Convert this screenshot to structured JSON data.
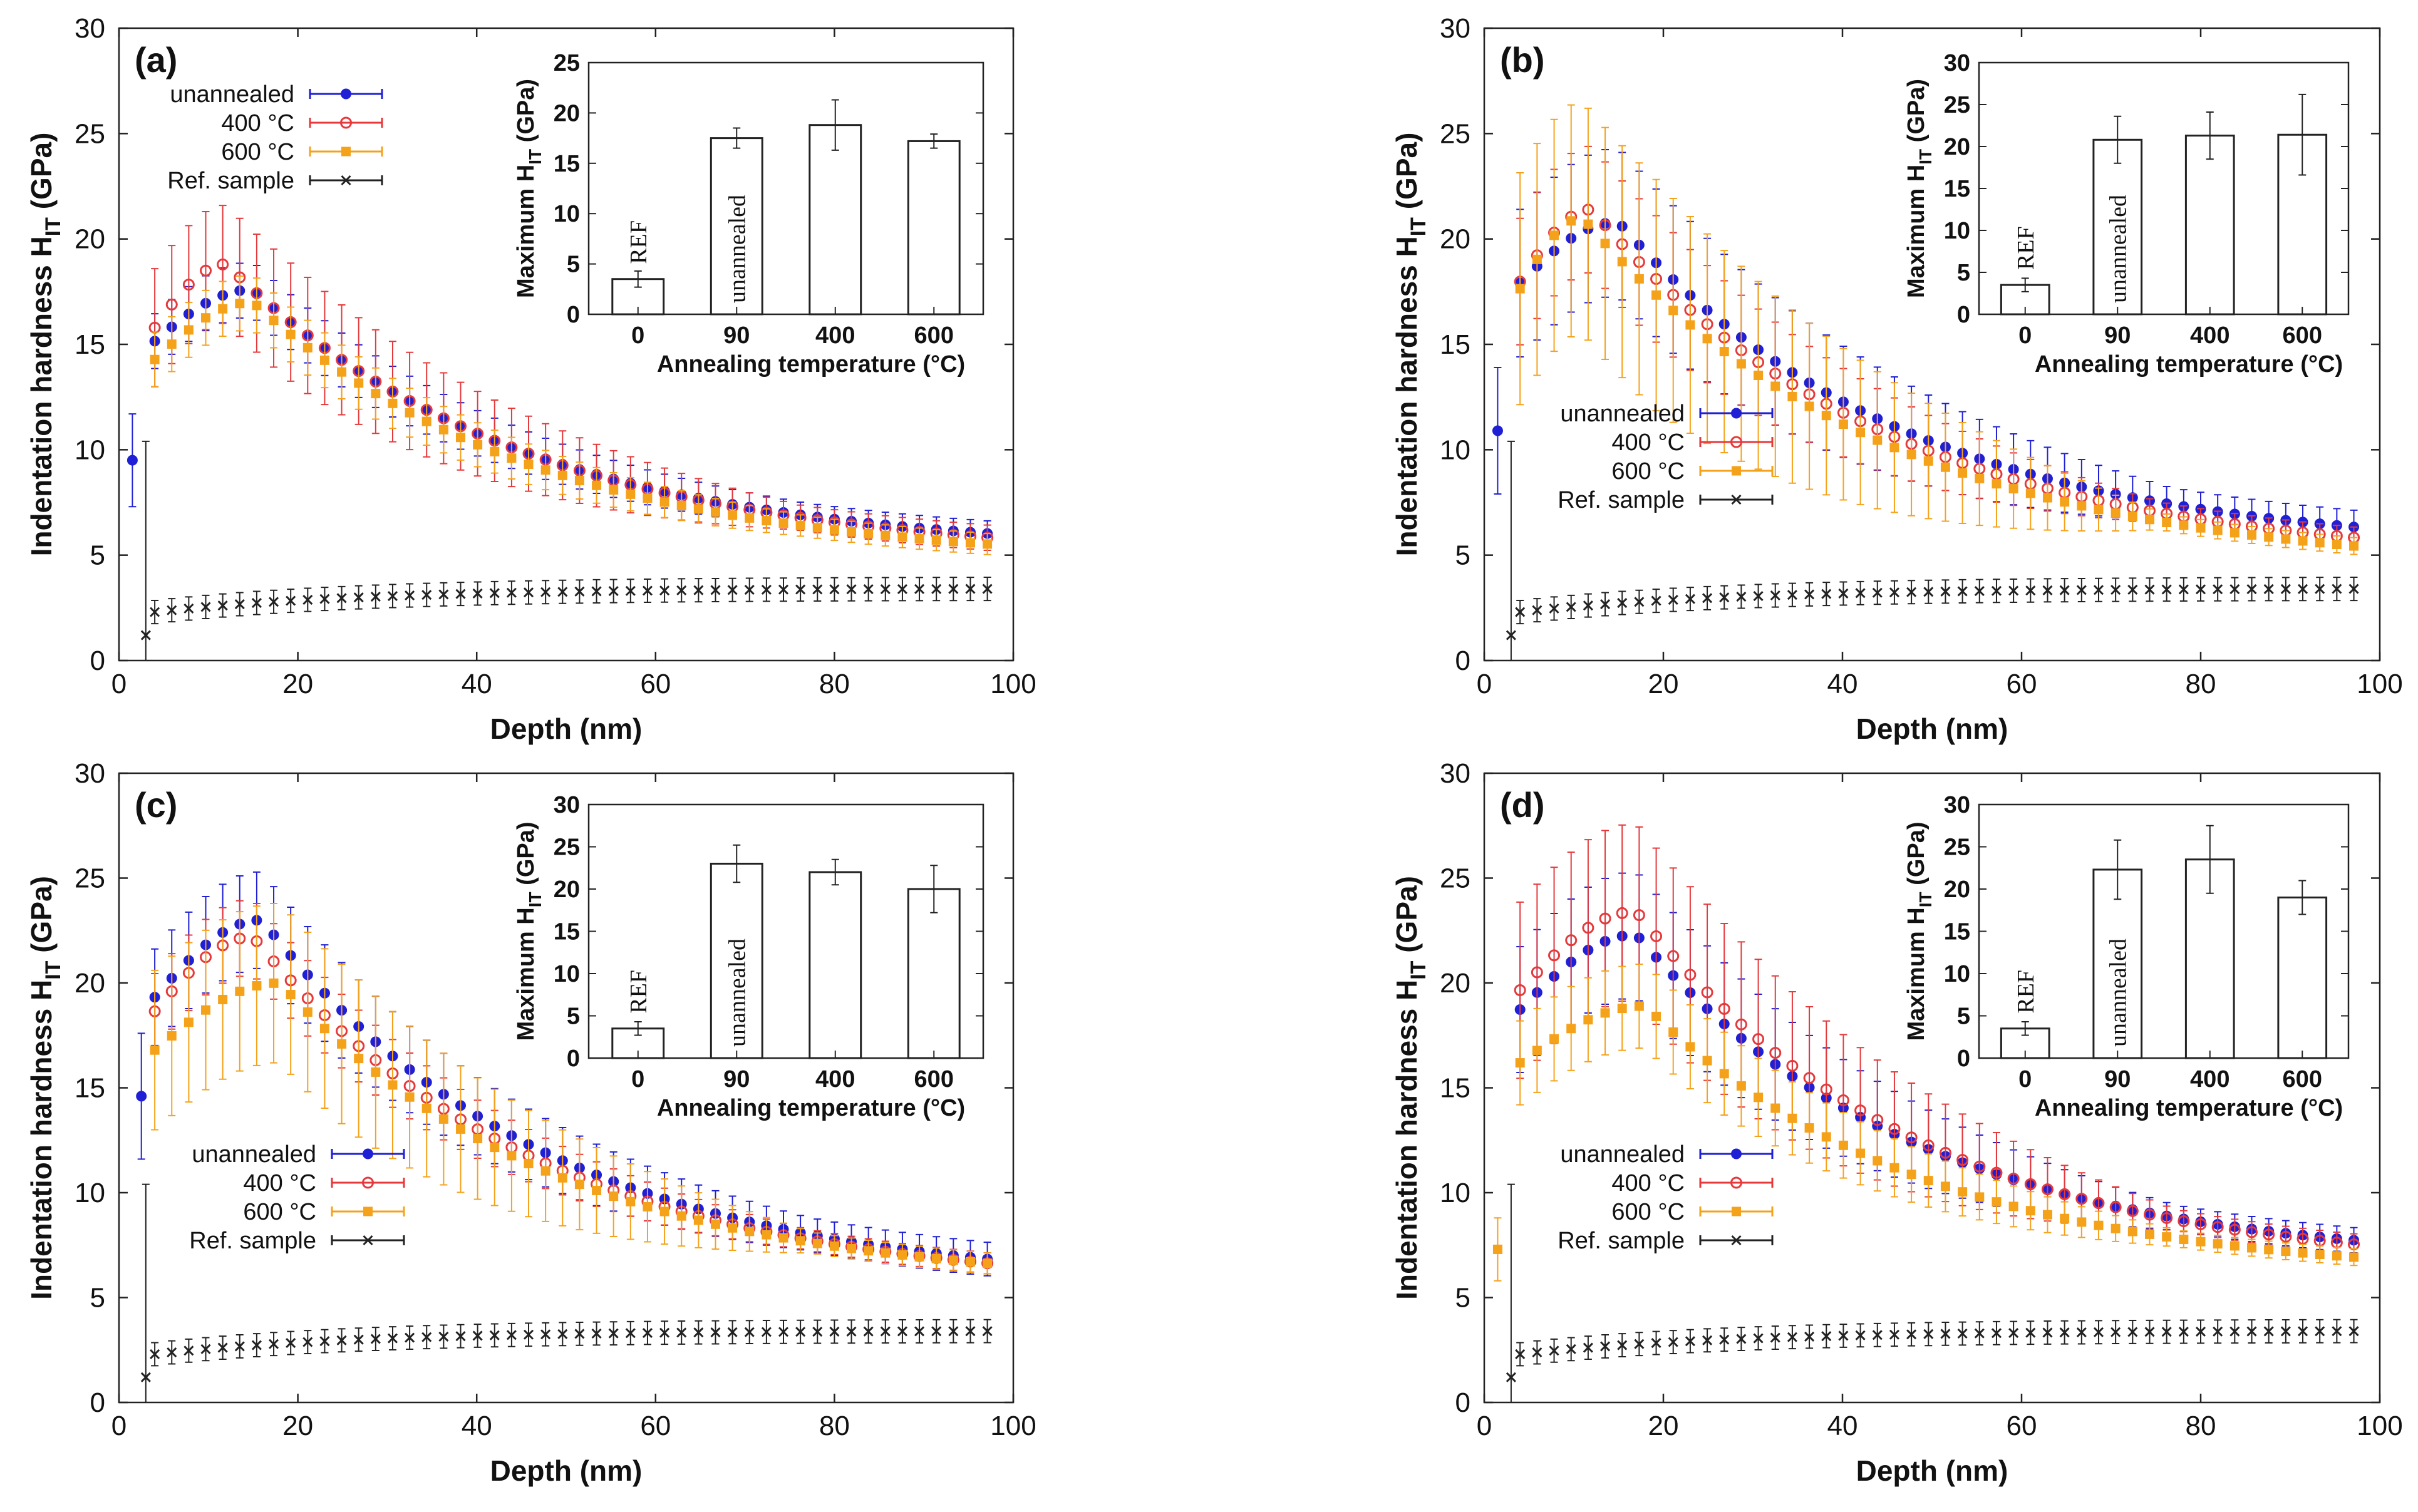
{
  "chart_data": [
    {
      "panel": "(a)",
      "type": "scatter",
      "xlabel": "Depth (nm)",
      "ylabel": "Indentation hardness H",
      "ylabel_sub": "IT",
      "ylabel_unit": "(GPa)",
      "xlim": [
        0,
        100
      ],
      "ylim": [
        0,
        30
      ],
      "xticks": [
        0,
        20,
        40,
        60,
        80,
        100
      ],
      "yticks": [
        0,
        5,
        10,
        15,
        20,
        25,
        30
      ],
      "legend_position": "top-left",
      "series": [
        {
          "name": "unannealed",
          "color": "#1f1fd6",
          "marker": "filled-circle",
          "x0": 1.5,
          "y0": 9.5,
          "e0": 2.2,
          "peak_x": 15,
          "peak_y": 17.6,
          "end_y": 6.0,
          "err_peak": 1.3,
          "err_end": 0.6,
          "x_start": 3
        },
        {
          "name": "400 °C",
          "color": "#e5393b",
          "marker": "open-circle",
          "peak_x": 12,
          "peak_y": 18.8,
          "end_y": 5.8,
          "err_peak": 2.8,
          "err_end": 0.6,
          "x_start": 4
        },
        {
          "name": "600 °C",
          "color": "#f5a21b",
          "marker": "filled-square",
          "peak_x": 15,
          "peak_y": 17.0,
          "end_y": 5.5,
          "err_peak": 1.3,
          "err_end": 0.5,
          "x_start": 4
        },
        {
          "name": "Ref. sample",
          "color": "#222222",
          "marker": "cross",
          "x0": 3,
          "y0": 1.2,
          "e0": 9.2,
          "start_y": 2.3,
          "end_y": 3.4,
          "err": 0.55
        }
      ],
      "inset": {
        "type": "bar",
        "xlabel": "Annealing temperature (°C)",
        "ylabel": "Maximum H",
        "ylabel_sub": "IT",
        "ylabel_unit": "(GPa)",
        "categories": [
          "0",
          "90",
          "400",
          "600"
        ],
        "values": [
          3.5,
          17.5,
          18.8,
          17.2
        ],
        "errors": [
          0.8,
          1.0,
          2.5,
          0.7
        ],
        "bar_labels": [
          "REF",
          "unannealed",
          "",
          ""
        ],
        "ylim": [
          0,
          25
        ],
        "yticks": [
          0,
          5,
          10,
          15,
          20,
          25
        ]
      }
    },
    {
      "panel": "(b)",
      "type": "scatter",
      "xlabel": "Depth (nm)",
      "ylabel": "Indentation hardness H",
      "ylabel_sub": "IT",
      "ylabel_unit": "(GPa)",
      "xlim": [
        0,
        100
      ],
      "ylim": [
        0,
        30
      ],
      "xticks": [
        0,
        20,
        40,
        60,
        80,
        100
      ],
      "yticks": [
        0,
        5,
        10,
        15,
        20,
        25,
        30
      ],
      "legend_position": "middle-left",
      "series": [
        {
          "name": "unannealed",
          "color": "#1f1fd6",
          "marker": "filled-circle",
          "x0": 1.5,
          "y0": 10.9,
          "e0": 3.0,
          "peak_x": 15,
          "peak_y": 20.8,
          "end_y": 6.3,
          "err_peak": 3.5,
          "err_end": 0.8,
          "x_start": 3
        },
        {
          "name": "400 °C",
          "color": "#e5393b",
          "marker": "open-circle",
          "peak_x": 12,
          "peak_y": 21.4,
          "end_y": 5.8,
          "err_peak": 3.0,
          "err_end": 0.5,
          "x_start": 4
        },
        {
          "name": "600 °C",
          "color": "#f5a21b",
          "marker": "filled-square",
          "peak_x": 11,
          "peak_y": 21.0,
          "end_y": 5.4,
          "err_peak": 5.5,
          "err_end": 0.4,
          "x_start": 4
        },
        {
          "name": "Ref. sample",
          "color": "#222222",
          "marker": "cross",
          "x0": 3,
          "y0": 1.2,
          "e0": 9.2,
          "start_y": 2.3,
          "end_y": 3.4,
          "err": 0.55
        }
      ],
      "inset": {
        "type": "bar",
        "xlabel": "Annealing temperature (°C)",
        "ylabel": "Maximum H",
        "ylabel_sub": "IT",
        "ylabel_unit": "(GPa)",
        "categories": [
          "0",
          "90",
          "400",
          "600"
        ],
        "values": [
          3.5,
          20.8,
          21.3,
          21.4
        ],
        "errors": [
          0.8,
          2.8,
          2.8,
          4.8
        ],
        "bar_labels": [
          "REF",
          "unannealed",
          "",
          ""
        ],
        "ylim": [
          0,
          30
        ],
        "yticks": [
          0,
          5,
          10,
          15,
          20,
          25,
          30
        ]
      }
    },
    {
      "panel": "(c)",
      "type": "scatter",
      "xlabel": "Depth (nm)",
      "ylabel": "Indentation hardness H",
      "ylabel_sub": "IT",
      "ylabel_unit": "(GPa)",
      "xlim": [
        0,
        100
      ],
      "ylim": [
        0,
        30
      ],
      "xticks": [
        0,
        20,
        40,
        60,
        80,
        100
      ],
      "yticks": [
        0,
        5,
        10,
        15,
        20,
        25,
        30
      ],
      "legend_position": "middle-left",
      "series": [
        {
          "name": "unannealed",
          "color": "#1f1fd6",
          "marker": "filled-circle",
          "x0": 2.5,
          "y0": 14.6,
          "e0": 3.0,
          "peak_x": 16,
          "peak_y": 23.0,
          "end_y": 6.8,
          "err_peak": 2.3,
          "err_end": 0.8,
          "x_start": 4
        },
        {
          "name": "400 °C",
          "color": "#e5393b",
          "marker": "open-circle",
          "peak_x": 15,
          "peak_y": 22.2,
          "end_y": 6.6,
          "err_peak": 1.8,
          "err_end": 0.5,
          "x_start": 4
        },
        {
          "name": "600 °C",
          "color": "#f5a21b",
          "marker": "filled-square",
          "peak_x": 18,
          "peak_y": 20.0,
          "end_y": 6.6,
          "err_peak": 3.8,
          "err_end": 0.5,
          "x_start": 4
        },
        {
          "name": "Ref. sample",
          "color": "#222222",
          "marker": "cross",
          "x0": 3,
          "y0": 1.2,
          "e0": 9.2,
          "start_y": 2.3,
          "end_y": 3.4,
          "err": 0.55
        }
      ],
      "inset": {
        "type": "bar",
        "xlabel": "Annealing temperature (°C)",
        "ylabel": "Maximum H",
        "ylabel_sub": "IT",
        "ylabel_unit": "(GPa)",
        "categories": [
          "0",
          "90",
          "400",
          "600"
        ],
        "values": [
          3.5,
          23.0,
          22.0,
          20.0
        ],
        "errors": [
          0.8,
          2.2,
          1.5,
          2.8
        ],
        "bar_labels": [
          "REF",
          "unannealed",
          "",
          ""
        ],
        "ylim": [
          0,
          30
        ],
        "yticks": [
          0,
          5,
          10,
          15,
          20,
          25,
          30
        ]
      }
    },
    {
      "panel": "(d)",
      "type": "scatter",
      "xlabel": "Depth (nm)",
      "ylabel": "Indentation hardness H",
      "ylabel_sub": "IT",
      "ylabel_unit": "(GPa)",
      "xlim": [
        0,
        100
      ],
      "ylim": [
        0,
        30
      ],
      "xticks": [
        0,
        20,
        40,
        60,
        80,
        100
      ],
      "yticks": [
        0,
        5,
        10,
        15,
        20,
        25,
        30
      ],
      "legend_position": "middle-left",
      "series": [
        {
          "name": "unannealed",
          "color": "#1f1fd6",
          "marker": "filled-circle",
          "peak_x": 17,
          "peak_y": 22.3,
          "end_y": 7.7,
          "err_peak": 3.0,
          "err_end": 0.6,
          "x_start": 4
        },
        {
          "name": "400 °C",
          "color": "#e5393b",
          "marker": "open-circle",
          "peak_x": 17,
          "peak_y": 23.4,
          "end_y": 7.5,
          "err_peak": 4.2,
          "err_end": 0.5,
          "x_start": 4
        },
        {
          "name": "600 °C",
          "color": "#f5a21b",
          "marker": "filled-square",
          "x0": 1.5,
          "y0": 7.3,
          "e0": 1.5,
          "peak_x": 18,
          "peak_y": 18.9,
          "end_y": 6.9,
          "err_peak": 2.0,
          "err_end": 0.4,
          "x_start": 3
        },
        {
          "name": "Ref. sample",
          "color": "#222222",
          "marker": "cross",
          "x0": 3,
          "y0": 1.2,
          "e0": 9.2,
          "start_y": 2.3,
          "end_y": 3.4,
          "err": 0.55
        }
      ],
      "inset": {
        "type": "bar",
        "xlabel": "Annealing temperature (°C)",
        "ylabel": "Maximum H",
        "ylabel_sub": "IT",
        "ylabel_unit": "(GPa)",
        "categories": [
          "0",
          "90",
          "400",
          "600"
        ],
        "values": [
          3.5,
          22.3,
          23.5,
          19.0
        ],
        "errors": [
          0.8,
          3.5,
          4.0,
          2.0
        ],
        "bar_labels": [
          "REF",
          "unannealed",
          "",
          ""
        ],
        "ylim": [
          0,
          30
        ],
        "yticks": [
          0,
          5,
          10,
          15,
          20,
          25,
          30
        ]
      }
    }
  ]
}
